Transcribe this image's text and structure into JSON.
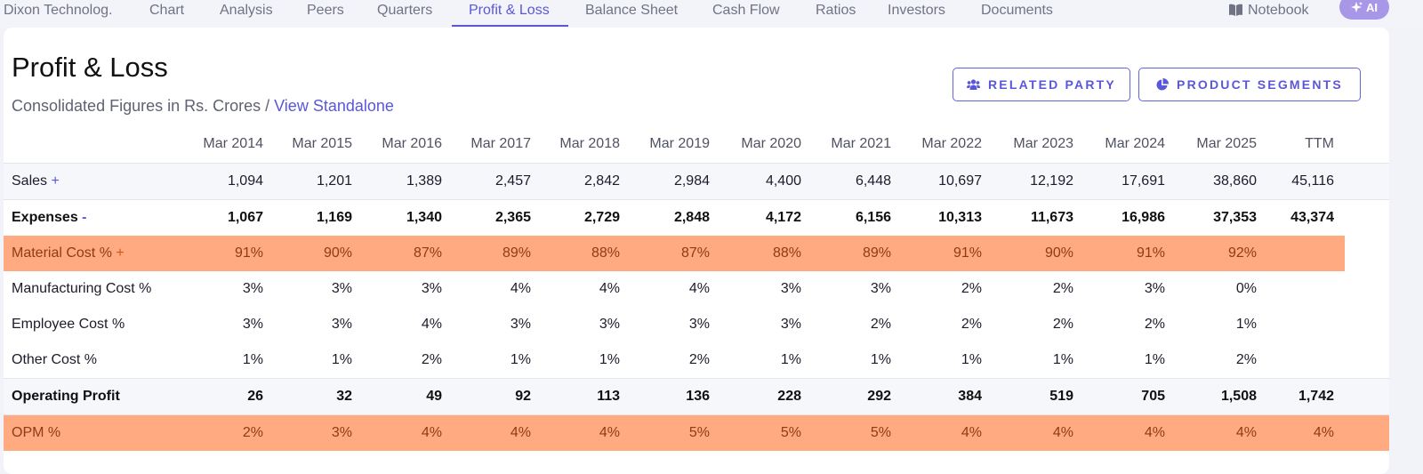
{
  "nav": {
    "company": "Dixon Technolog.",
    "tabs": [
      "Chart",
      "Analysis",
      "Peers",
      "Quarters",
      "Profit & Loss",
      "Balance Sheet",
      "Cash Flow",
      "Ratios",
      "Investors",
      "Documents"
    ],
    "active_tab": "Profit & Loss",
    "notebook_label": "Notebook",
    "ai_label": "AI"
  },
  "section": {
    "title": "Profit & Loss",
    "subtitle": "Consolidated Figures in Rs. Crores / ",
    "standalone_link": "View Standalone",
    "related_party_label": "RELATED PARTY",
    "product_segments_label": "PRODUCT SEGMENTS"
  },
  "table": {
    "columns": [
      "Mar 2014",
      "Mar 2015",
      "Mar 2016",
      "Mar 2017",
      "Mar 2018",
      "Mar 2019",
      "Mar 2020",
      "Mar 2021",
      "Mar 2022",
      "Mar 2023",
      "Mar 2024",
      "Mar 2025",
      "TTM"
    ],
    "rows": [
      {
        "label": "Sales",
        "toggle": "+",
        "values": [
          "1,094",
          "1,201",
          "1,389",
          "2,457",
          "2,842",
          "2,984",
          "4,400",
          "6,448",
          "10,697",
          "12,192",
          "17,691",
          "38,860",
          "45,116"
        ]
      },
      {
        "label": "Expenses",
        "toggle": "-",
        "values": [
          "1,067",
          "1,169",
          "1,340",
          "2,365",
          "2,729",
          "2,848",
          "4,172",
          "6,156",
          "10,313",
          "11,673",
          "16,986",
          "37,353",
          "43,374"
        ]
      },
      {
        "label": "Material Cost %",
        "toggle": "+",
        "values": [
          "91%",
          "90%",
          "87%",
          "89%",
          "88%",
          "87%",
          "88%",
          "89%",
          "91%",
          "90%",
          "91%",
          "92%",
          ""
        ]
      },
      {
        "label": "Manufacturing Cost %",
        "toggle": "",
        "values": [
          "3%",
          "3%",
          "3%",
          "4%",
          "4%",
          "4%",
          "3%",
          "3%",
          "2%",
          "2%",
          "3%",
          "0%",
          ""
        ]
      },
      {
        "label": "Employee Cost %",
        "toggle": "",
        "values": [
          "3%",
          "3%",
          "4%",
          "3%",
          "3%",
          "3%",
          "3%",
          "2%",
          "2%",
          "2%",
          "2%",
          "1%",
          ""
        ]
      },
      {
        "label": "Other Cost %",
        "toggle": "",
        "values": [
          "1%",
          "1%",
          "2%",
          "1%",
          "1%",
          "2%",
          "1%",
          "1%",
          "1%",
          "1%",
          "1%",
          "2%",
          ""
        ]
      },
      {
        "label": "Operating Profit",
        "toggle": "",
        "values": [
          "26",
          "32",
          "49",
          "92",
          "113",
          "136",
          "228",
          "292",
          "384",
          "519",
          "705",
          "1,508",
          "1,742"
        ]
      },
      {
        "label": "OPM %",
        "toggle": "",
        "values": [
          "2%",
          "3%",
          "4%",
          "4%",
          "4%",
          "5%",
          "5%",
          "5%",
          "4%",
          "4%",
          "4%",
          "4%",
          "4%"
        ]
      }
    ]
  },
  "colors": {
    "accent": "#5a57d9",
    "highlight": "#ffaa80",
    "highlight_text": "#8e3b16"
  }
}
